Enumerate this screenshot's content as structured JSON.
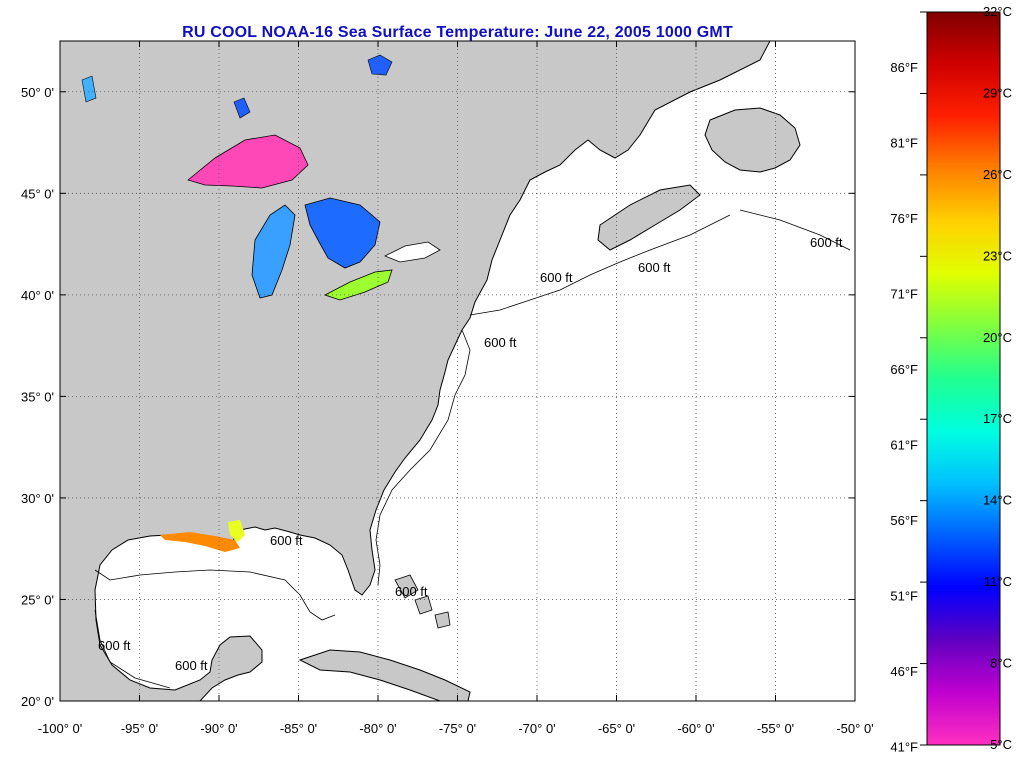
{
  "title": "RU COOL  NOAA-16  Sea Surface Temperature:  June 22, 2005 1000 GMT",
  "map": {
    "lon_range": [
      -100,
      -50
    ],
    "lat_range": [
      20,
      52.5
    ],
    "lat_ticks": [
      {
        "value": 50,
        "label": "50° 0'"
      },
      {
        "value": 45,
        "label": "45° 0'"
      },
      {
        "value": 40,
        "label": "40° 0'"
      },
      {
        "value": 35,
        "label": "35° 0'"
      },
      {
        "value": 30,
        "label": "30° 0'"
      },
      {
        "value": 25,
        "label": "25° 0'"
      },
      {
        "value": 20,
        "label": "20° 0'"
      }
    ],
    "lon_ticks": [
      {
        "value": -100,
        "label": "-100° 0'"
      },
      {
        "value": -95,
        "label": "-95° 0'"
      },
      {
        "value": -90,
        "label": "-90° 0'"
      },
      {
        "value": -85,
        "label": "-85° 0'"
      },
      {
        "value": -80,
        "label": "-80° 0'"
      },
      {
        "value": -75,
        "label": "-75° 0'"
      },
      {
        "value": -70,
        "label": "-70° 0'"
      },
      {
        "value": -65,
        "label": "-65° 0'"
      },
      {
        "value": -60,
        "label": "-60° 0'"
      },
      {
        "value": -55,
        "label": "-55° 0'"
      },
      {
        "value": -50,
        "label": "-50° 0'"
      }
    ],
    "contour_label": "600 ft",
    "land_color": "#c8c8c8",
    "ocean_color": "#ffffff"
  },
  "colorbar": {
    "celsius_labels": [
      "32°C",
      "29°C",
      "26°C",
      "23°C",
      "20°C",
      "17°C",
      "14°C",
      "11°C",
      "8°C",
      "5°C"
    ],
    "fahrenheit_labels": [
      "86°F",
      "81°F",
      "76°F",
      "71°F",
      "66°F",
      "61°F",
      "56°F",
      "51°F",
      "46°F",
      "41°F"
    ],
    "colors_top_to_bottom": [
      "#800000",
      "#d00000",
      "#ff2000",
      "#ff8000",
      "#ffd000",
      "#e0ff00",
      "#80ff40",
      "#20ff90",
      "#00ffe0",
      "#00c0ff",
      "#0060ff",
      "#0000ff",
      "#6000c0",
      "#c000d0",
      "#ff30c0"
    ]
  }
}
